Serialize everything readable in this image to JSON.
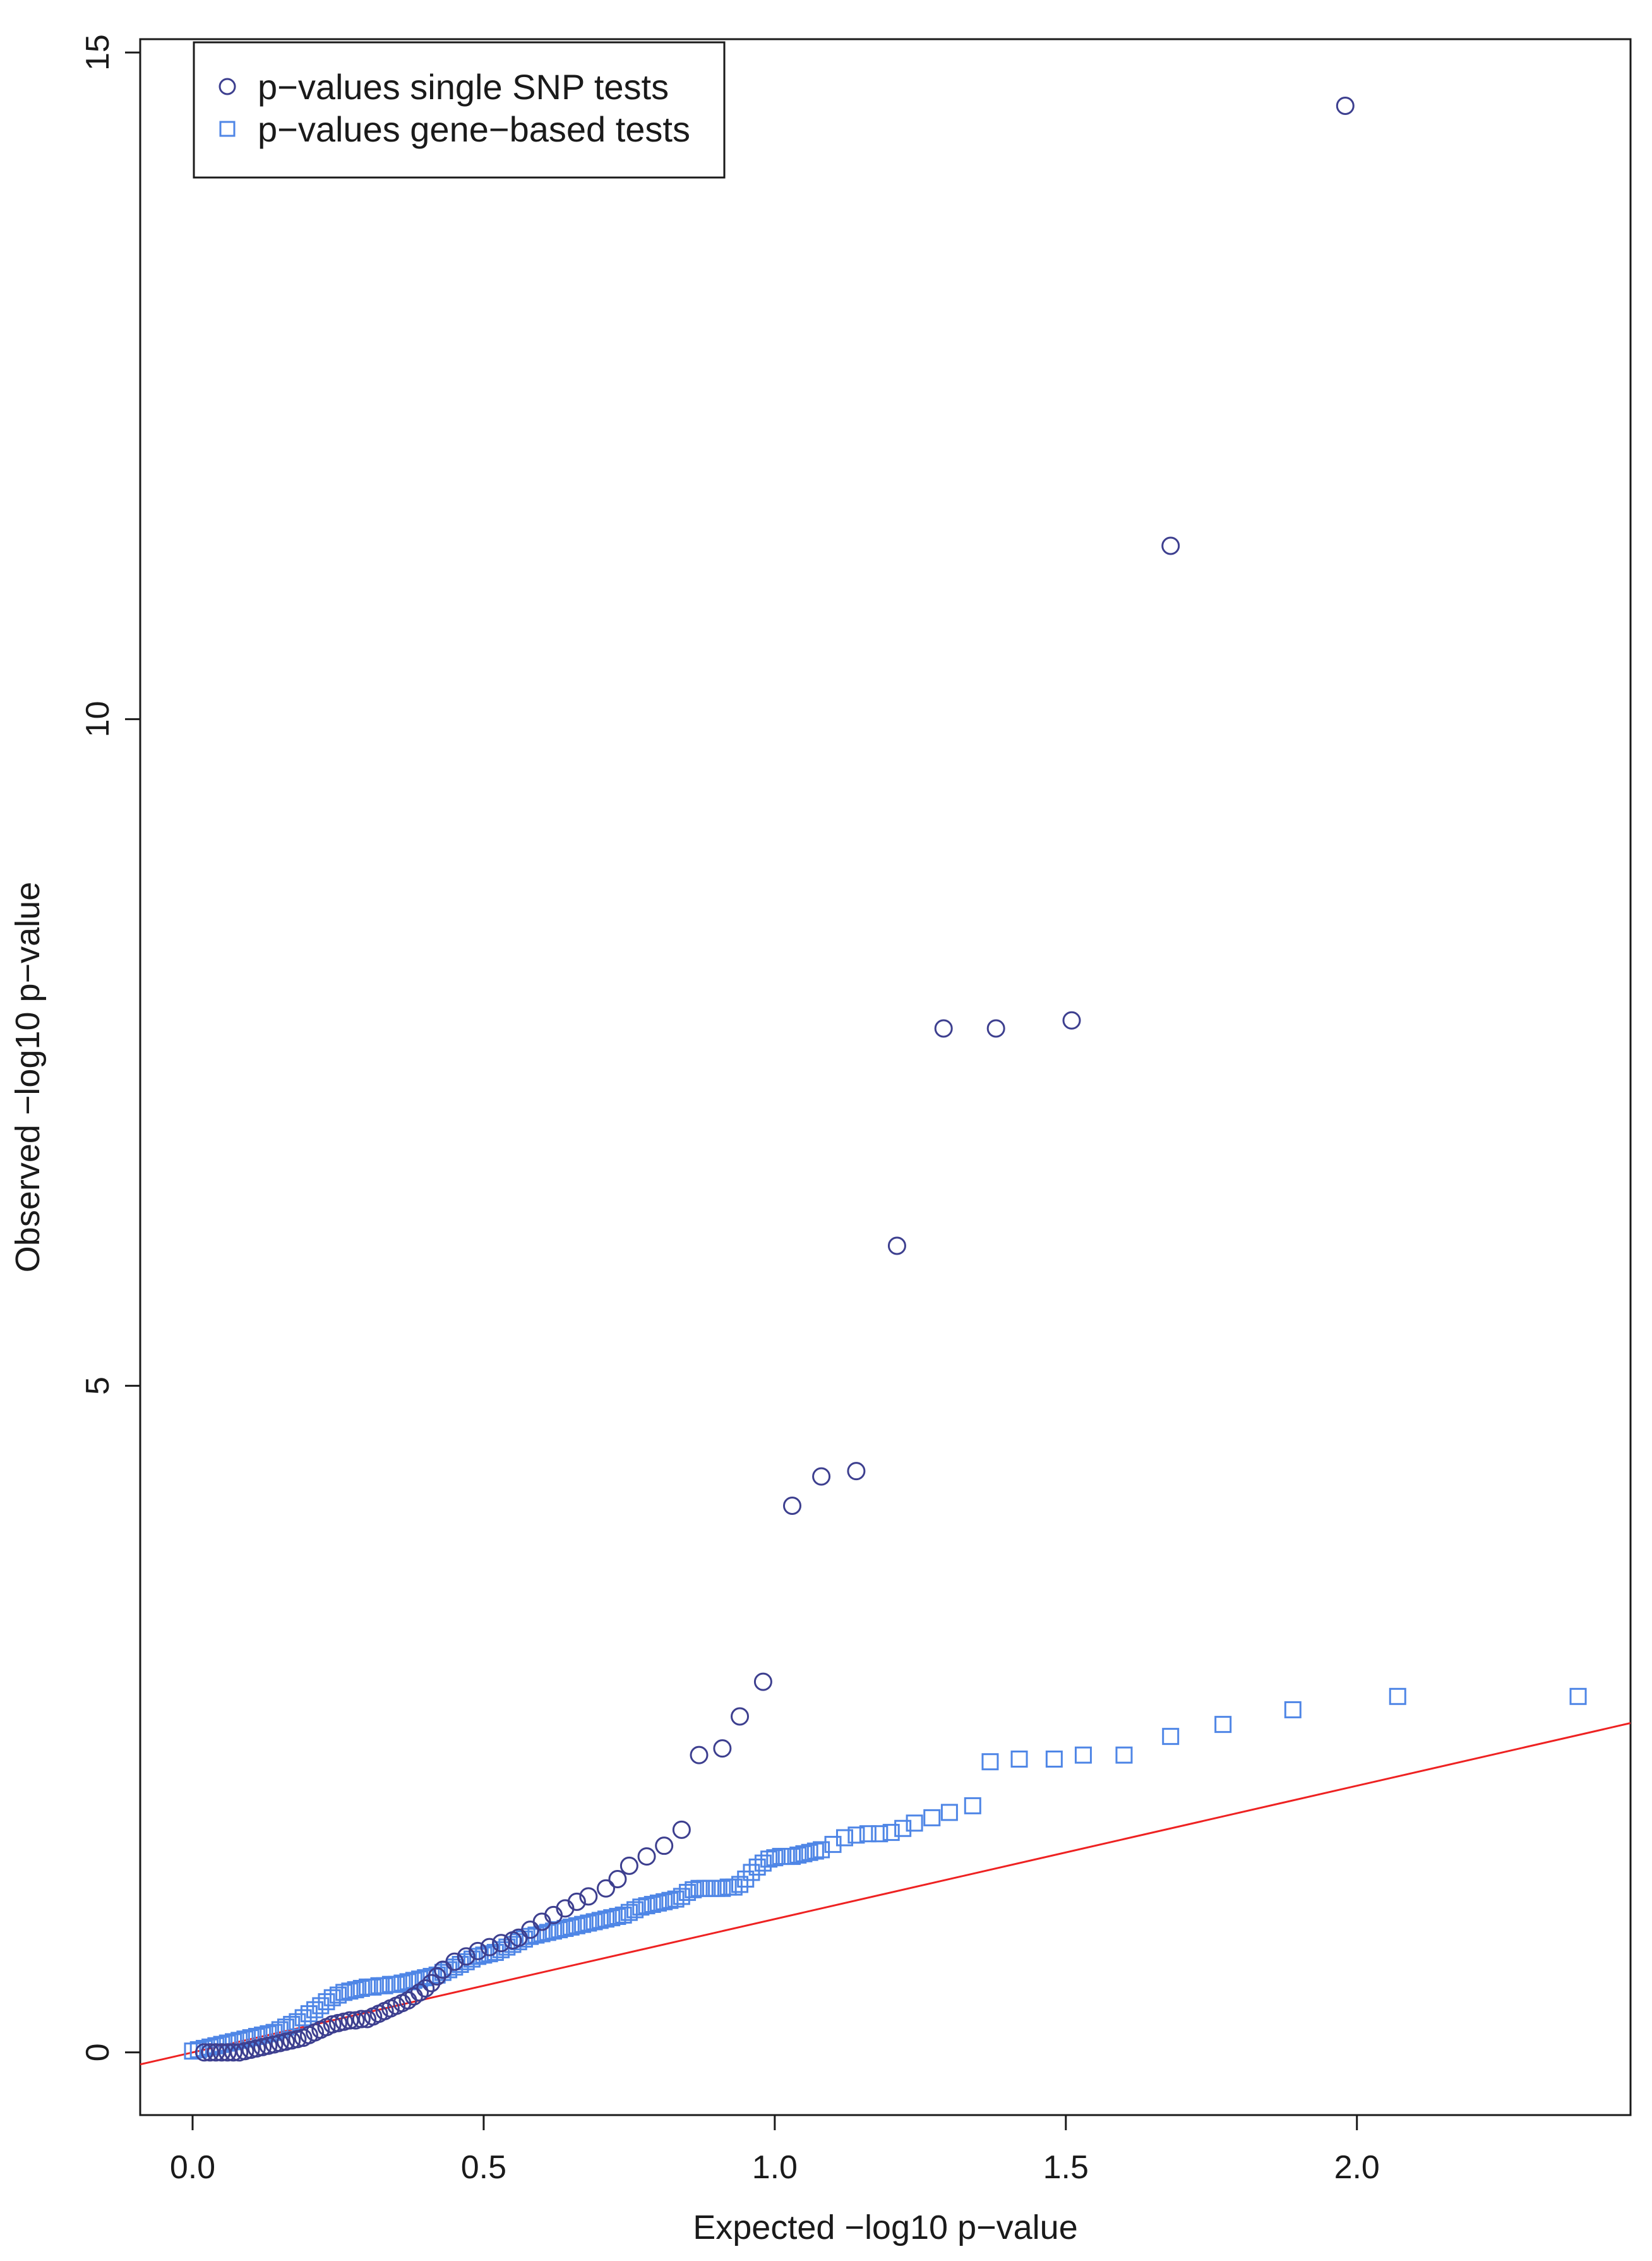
{
  "chart_data": {
    "type": "scatter",
    "xlabel": "Expected −log10 p−value",
    "ylabel": "Observed −log10 p−value",
    "xlim": [
      -0.09,
      2.47
    ],
    "ylim": [
      -0.47,
      15.1
    ],
    "x_ticks": [
      0.0,
      0.5,
      1.0,
      1.5,
      2.0
    ],
    "x_tick_labels": [
      "0.0",
      "0.5",
      "1.0",
      "1.5",
      "2.0"
    ],
    "y_ticks": [
      0,
      5,
      10,
      15
    ],
    "y_tick_labels": [
      "0",
      "5",
      "10",
      "15"
    ],
    "grid": false,
    "legend": {
      "position": "top-left",
      "entries": [
        {
          "label": "p−values single SNP tests",
          "marker": "circle",
          "color": "#3d3f8f"
        },
        {
          "label": "p−values gene−based tests",
          "marker": "square",
          "color": "#4f86e6"
        }
      ]
    },
    "reference_line": {
      "slope": 1,
      "intercept": 0,
      "color": "#ee2222"
    },
    "series": [
      {
        "name": "p−values single SNP tests",
        "marker": "circle",
        "color": "#3d3f8f",
        "points": [
          [
            0.02,
            0.0
          ],
          [
            0.03,
            0.0
          ],
          [
            0.04,
            0.0
          ],
          [
            0.05,
            0.0
          ],
          [
            0.06,
            0.0
          ],
          [
            0.07,
            0.0
          ],
          [
            0.08,
            0.0
          ],
          [
            0.09,
            0.01
          ],
          [
            0.1,
            0.02
          ],
          [
            0.11,
            0.03
          ],
          [
            0.12,
            0.04
          ],
          [
            0.13,
            0.05
          ],
          [
            0.14,
            0.06
          ],
          [
            0.15,
            0.07
          ],
          [
            0.16,
            0.08
          ],
          [
            0.17,
            0.09
          ],
          [
            0.18,
            0.1
          ],
          [
            0.19,
            0.11
          ],
          [
            0.2,
            0.13
          ],
          [
            0.21,
            0.15
          ],
          [
            0.22,
            0.17
          ],
          [
            0.23,
            0.19
          ],
          [
            0.24,
            0.21
          ],
          [
            0.25,
            0.22
          ],
          [
            0.26,
            0.23
          ],
          [
            0.27,
            0.24
          ],
          [
            0.28,
            0.24
          ],
          [
            0.29,
            0.25
          ],
          [
            0.3,
            0.25
          ],
          [
            0.31,
            0.27
          ],
          [
            0.32,
            0.29
          ],
          [
            0.33,
            0.31
          ],
          [
            0.34,
            0.33
          ],
          [
            0.35,
            0.35
          ],
          [
            0.36,
            0.37
          ],
          [
            0.37,
            0.39
          ],
          [
            0.38,
            0.42
          ],
          [
            0.39,
            0.45
          ],
          [
            0.4,
            0.48
          ],
          [
            0.41,
            0.52
          ],
          [
            0.42,
            0.57
          ],
          [
            0.43,
            0.62
          ],
          [
            0.45,
            0.68
          ],
          [
            0.47,
            0.72
          ],
          [
            0.49,
            0.76
          ],
          [
            0.51,
            0.79
          ],
          [
            0.53,
            0.82
          ],
          [
            0.55,
            0.84
          ],
          [
            0.56,
            0.86
          ],
          [
            0.58,
            0.92
          ],
          [
            0.6,
            0.98
          ],
          [
            0.62,
            1.03
          ],
          [
            0.64,
            1.08
          ],
          [
            0.66,
            1.13
          ],
          [
            0.68,
            1.17
          ],
          [
            0.71,
            1.23
          ],
          [
            0.73,
            1.3
          ],
          [
            0.75,
            1.4
          ],
          [
            0.78,
            1.47
          ],
          [
            0.81,
            1.55
          ],
          [
            0.84,
            1.67
          ],
          [
            0.87,
            2.23
          ],
          [
            0.91,
            2.28
          ],
          [
            0.94,
            2.52
          ],
          [
            0.98,
            2.78
          ],
          [
            1.03,
            4.1
          ],
          [
            1.08,
            4.32
          ],
          [
            1.14,
            4.36
          ],
          [
            1.21,
            6.05
          ],
          [
            1.29,
            7.68
          ],
          [
            1.38,
            7.68
          ],
          [
            1.51,
            7.74
          ],
          [
            1.68,
            11.3
          ],
          [
            1.98,
            14.6
          ]
        ]
      },
      {
        "name": "p−values gene−based tests",
        "marker": "square",
        "color": "#4f86e6",
        "points": [
          [
            0.0,
            0.01
          ],
          [
            0.01,
            0.02
          ],
          [
            0.02,
            0.03
          ],
          [
            0.03,
            0.04
          ],
          [
            0.04,
            0.05
          ],
          [
            0.05,
            0.06
          ],
          [
            0.06,
            0.07
          ],
          [
            0.07,
            0.08
          ],
          [
            0.08,
            0.09
          ],
          [
            0.09,
            0.1
          ],
          [
            0.1,
            0.11
          ],
          [
            0.11,
            0.12
          ],
          [
            0.12,
            0.13
          ],
          [
            0.13,
            0.14
          ],
          [
            0.14,
            0.15
          ],
          [
            0.15,
            0.17
          ],
          [
            0.16,
            0.19
          ],
          [
            0.17,
            0.21
          ],
          [
            0.18,
            0.23
          ],
          [
            0.19,
            0.26
          ],
          [
            0.2,
            0.29
          ],
          [
            0.21,
            0.32
          ],
          [
            0.22,
            0.35
          ],
          [
            0.23,
            0.38
          ],
          [
            0.24,
            0.41
          ],
          [
            0.25,
            0.43
          ],
          [
            0.26,
            0.45
          ],
          [
            0.27,
            0.46
          ],
          [
            0.28,
            0.47
          ],
          [
            0.29,
            0.48
          ],
          [
            0.3,
            0.49
          ],
          [
            0.31,
            0.49
          ],
          [
            0.32,
            0.5
          ],
          [
            0.33,
            0.5
          ],
          [
            0.34,
            0.51
          ],
          [
            0.35,
            0.51
          ],
          [
            0.36,
            0.52
          ],
          [
            0.37,
            0.53
          ],
          [
            0.38,
            0.54
          ],
          [
            0.39,
            0.55
          ],
          [
            0.4,
            0.56
          ],
          [
            0.41,
            0.57
          ],
          [
            0.42,
            0.58
          ],
          [
            0.43,
            0.6
          ],
          [
            0.44,
            0.62
          ],
          [
            0.45,
            0.64
          ],
          [
            0.46,
            0.66
          ],
          [
            0.47,
            0.68
          ],
          [
            0.48,
            0.7
          ],
          [
            0.49,
            0.72
          ],
          [
            0.5,
            0.73
          ],
          [
            0.51,
            0.74
          ],
          [
            0.52,
            0.75
          ],
          [
            0.53,
            0.77
          ],
          [
            0.54,
            0.79
          ],
          [
            0.55,
            0.81
          ],
          [
            0.56,
            0.83
          ],
          [
            0.57,
            0.85
          ],
          [
            0.58,
            0.87
          ],
          [
            0.59,
            0.88
          ],
          [
            0.6,
            0.89
          ],
          [
            0.61,
            0.9
          ],
          [
            0.62,
            0.91
          ],
          [
            0.63,
            0.92
          ],
          [
            0.64,
            0.93
          ],
          [
            0.65,
            0.94
          ],
          [
            0.66,
            0.95
          ],
          [
            0.67,
            0.96
          ],
          [
            0.68,
            0.97
          ],
          [
            0.69,
            0.98
          ],
          [
            0.7,
            0.99
          ],
          [
            0.71,
            1.0
          ],
          [
            0.72,
            1.01
          ],
          [
            0.73,
            1.02
          ],
          [
            0.74,
            1.03
          ],
          [
            0.75,
            1.05
          ],
          [
            0.76,
            1.07
          ],
          [
            0.77,
            1.09
          ],
          [
            0.78,
            1.1
          ],
          [
            0.79,
            1.11
          ],
          [
            0.8,
            1.12
          ],
          [
            0.81,
            1.13
          ],
          [
            0.82,
            1.14
          ],
          [
            0.83,
            1.15
          ],
          [
            0.84,
            1.17
          ],
          [
            0.85,
            1.2
          ],
          [
            0.86,
            1.22
          ],
          [
            0.87,
            1.23
          ],
          [
            0.88,
            1.23
          ],
          [
            0.89,
            1.23
          ],
          [
            0.9,
            1.23
          ],
          [
            0.91,
            1.23
          ],
          [
            0.92,
            1.24
          ],
          [
            0.93,
            1.24
          ],
          [
            0.94,
            1.26
          ],
          [
            0.95,
            1.3
          ],
          [
            0.96,
            1.35
          ],
          [
            0.97,
            1.39
          ],
          [
            0.98,
            1.42
          ],
          [
            0.99,
            1.45
          ],
          [
            1.0,
            1.46
          ],
          [
            1.01,
            1.47
          ],
          [
            1.02,
            1.47
          ],
          [
            1.03,
            1.47
          ],
          [
            1.04,
            1.48
          ],
          [
            1.05,
            1.49
          ],
          [
            1.06,
            1.5
          ],
          [
            1.07,
            1.51
          ],
          [
            1.08,
            1.52
          ],
          [
            1.1,
            1.56
          ],
          [
            1.12,
            1.61
          ],
          [
            1.14,
            1.63
          ],
          [
            1.16,
            1.64
          ],
          [
            1.18,
            1.64
          ],
          [
            1.2,
            1.65
          ],
          [
            1.22,
            1.68
          ],
          [
            1.24,
            1.72
          ],
          [
            1.27,
            1.76
          ],
          [
            1.3,
            1.8
          ],
          [
            1.34,
            1.85
          ],
          [
            1.37,
            2.18
          ],
          [
            1.42,
            2.2
          ],
          [
            1.48,
            2.2
          ],
          [
            1.53,
            2.23
          ],
          [
            1.6,
            2.23
          ],
          [
            1.68,
            2.37
          ],
          [
            1.77,
            2.46
          ],
          [
            1.89,
            2.57
          ],
          [
            2.07,
            2.67
          ],
          [
            2.38,
            2.67
          ]
        ]
      }
    ]
  }
}
